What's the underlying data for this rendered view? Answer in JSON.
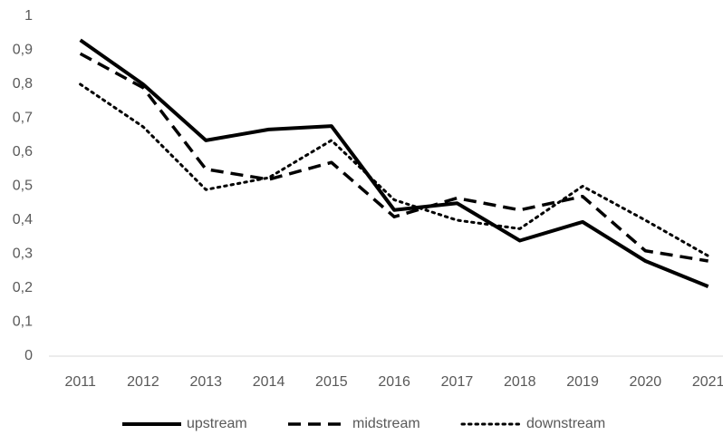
{
  "chart_data": {
    "type": "line",
    "categories": [
      "2011",
      "2012",
      "2013",
      "2014",
      "2015",
      "2016",
      "2017",
      "2018",
      "2019",
      "2020",
      "2021"
    ],
    "series": [
      {
        "name": "upstream",
        "color": "#000000",
        "dash": "solid",
        "values": [
          0.93,
          0.8,
          0.635,
          0.667,
          0.677,
          0.43,
          0.45,
          0.34,
          0.395,
          0.28,
          0.205
        ]
      },
      {
        "name": "midstream",
        "color": "#000000",
        "dash": "dashed",
        "values": [
          0.89,
          0.79,
          0.55,
          0.52,
          0.57,
          0.41,
          0.465,
          0.43,
          0.47,
          0.31,
          0.28
        ]
      },
      {
        "name": "downstream",
        "color": "#000000",
        "dash": "dotted",
        "values": [
          0.8,
          0.675,
          0.49,
          0.525,
          0.635,
          0.46,
          0.4,
          0.375,
          0.5,
          0.4,
          0.295
        ]
      }
    ],
    "ylim": [
      0,
      1
    ],
    "yticks": [
      0,
      {
        "value": 0.1,
        "label": "0,1"
      },
      {
        "value": 0.2,
        "label": "0,2"
      },
      {
        "value": 0.3,
        "label": "0,3"
      },
      {
        "value": 0.4,
        "label": "0,4"
      },
      {
        "value": 0.5,
        "label": "0,5"
      },
      {
        "value": 0.6,
        "label": "0,6"
      },
      {
        "value": 0.7,
        "label": "0,7"
      },
      {
        "value": 0.8,
        "label": "0,8"
      },
      {
        "value": 0.9,
        "label": "0,9"
      },
      1
    ],
    "grid": false,
    "legend": "bottom"
  }
}
